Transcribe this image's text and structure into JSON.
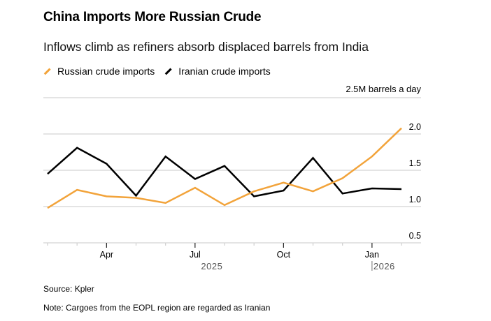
{
  "header": {
    "title": "China Imports More Russian Crude",
    "subtitle": "Inflows climb as refiners absorb displaced barrels from India"
  },
  "footer": {
    "source": "Source: Kpler",
    "note": "Note: Cargoes from the EOPL region are regarded as Iranian"
  },
  "chart_data": {
    "type": "line",
    "title": "China Imports More Russian Crude",
    "subtitle": "Inflows climb as refiners absorb displaced barrels from India",
    "xlabel": "",
    "ylabel": "M barrels a day",
    "unit_label": "2.5M barrels a day",
    "x": [
      "2025-02",
      "2025-03",
      "2025-04",
      "2025-05",
      "2025-06",
      "2025-07",
      "2025-08",
      "2025-09",
      "2025-10",
      "2025-11",
      "2025-12",
      "2026-01",
      "2026-02"
    ],
    "x_ticks": [
      {
        "label": "Apr",
        "index": 2,
        "major": true
      },
      {
        "label": "Jul",
        "index": 5,
        "major": true
      },
      {
        "label": "Oct",
        "index": 8,
        "major": true
      },
      {
        "label": "Jan",
        "index": 11,
        "major": true
      }
    ],
    "year_labels": [
      {
        "label": "2025",
        "index": 5,
        "divider": false
      },
      {
        "label": "2026",
        "index": 11,
        "divider": true
      }
    ],
    "ylim": [
      0.5,
      2.5
    ],
    "y_ticks": [
      {
        "value": 2.0,
        "label": "2.0"
      },
      {
        "value": 1.5,
        "label": "1.5"
      },
      {
        "value": 1.0,
        "label": "1.0"
      },
      {
        "value": 0.5,
        "label": "0.5"
      }
    ],
    "grid": true,
    "legend_position": "top-left",
    "series": [
      {
        "name": "Russian crude imports",
        "color": "#f2a33a",
        "values": [
          0.98,
          1.23,
          1.14,
          1.12,
          1.05,
          1.26,
          1.02,
          1.21,
          1.33,
          1.21,
          1.39,
          1.69,
          2.08
        ]
      },
      {
        "name": "Iranian crude imports",
        "color": "#000000",
        "values": [
          1.45,
          1.81,
          1.59,
          1.15,
          1.69,
          1.38,
          1.56,
          1.14,
          1.22,
          1.67,
          1.18,
          1.25,
          1.24
        ]
      }
    ]
  }
}
